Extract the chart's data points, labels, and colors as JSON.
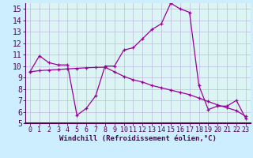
{
  "xlabel": "Windchill (Refroidissement éolien,°C)",
  "background_color": "#cceeff",
  "plot_bg_color": "#ddf4f4",
  "line_color": "#990099",
  "grid_color": "#bbbbdd",
  "separator_color": "#550055",
  "line1_x": [
    0,
    1,
    2,
    3,
    4,
    5,
    6,
    7,
    8,
    9,
    10,
    11,
    12,
    13,
    14,
    15,
    16,
    17,
    18,
    19,
    20,
    21,
    22,
    23
  ],
  "line1_y": [
    9.5,
    10.9,
    10.3,
    10.1,
    10.1,
    5.7,
    6.3,
    7.4,
    10.0,
    10.0,
    11.4,
    11.6,
    12.4,
    13.2,
    13.7,
    15.5,
    15.0,
    14.7,
    8.3,
    6.2,
    6.5,
    6.5,
    7.0,
    5.4
  ],
  "line2_x": [
    0,
    1,
    2,
    3,
    4,
    5,
    6,
    7,
    8,
    9,
    10,
    11,
    12,
    13,
    14,
    15,
    16,
    17,
    18,
    19,
    20,
    21,
    22,
    23
  ],
  "line2_y": [
    9.5,
    9.6,
    9.65,
    9.7,
    9.75,
    9.8,
    9.85,
    9.88,
    9.9,
    9.5,
    9.1,
    8.8,
    8.6,
    8.3,
    8.1,
    7.9,
    7.7,
    7.5,
    7.2,
    6.9,
    6.6,
    6.35,
    6.1,
    5.6
  ],
  "ylim": [
    5,
    15.5
  ],
  "xlim": [
    -0.5,
    23.5
  ],
  "yticks": [
    5,
    6,
    7,
    8,
    9,
    10,
    11,
    12,
    13,
    14,
    15
  ],
  "xticks": [
    0,
    1,
    2,
    3,
    4,
    5,
    6,
    7,
    8,
    9,
    10,
    11,
    12,
    13,
    14,
    15,
    16,
    17,
    18,
    19,
    20,
    21,
    22,
    23
  ],
  "xlabel_fontsize": 6.5,
  "tick_fontsize": 6,
  "ytick_fontsize": 7
}
